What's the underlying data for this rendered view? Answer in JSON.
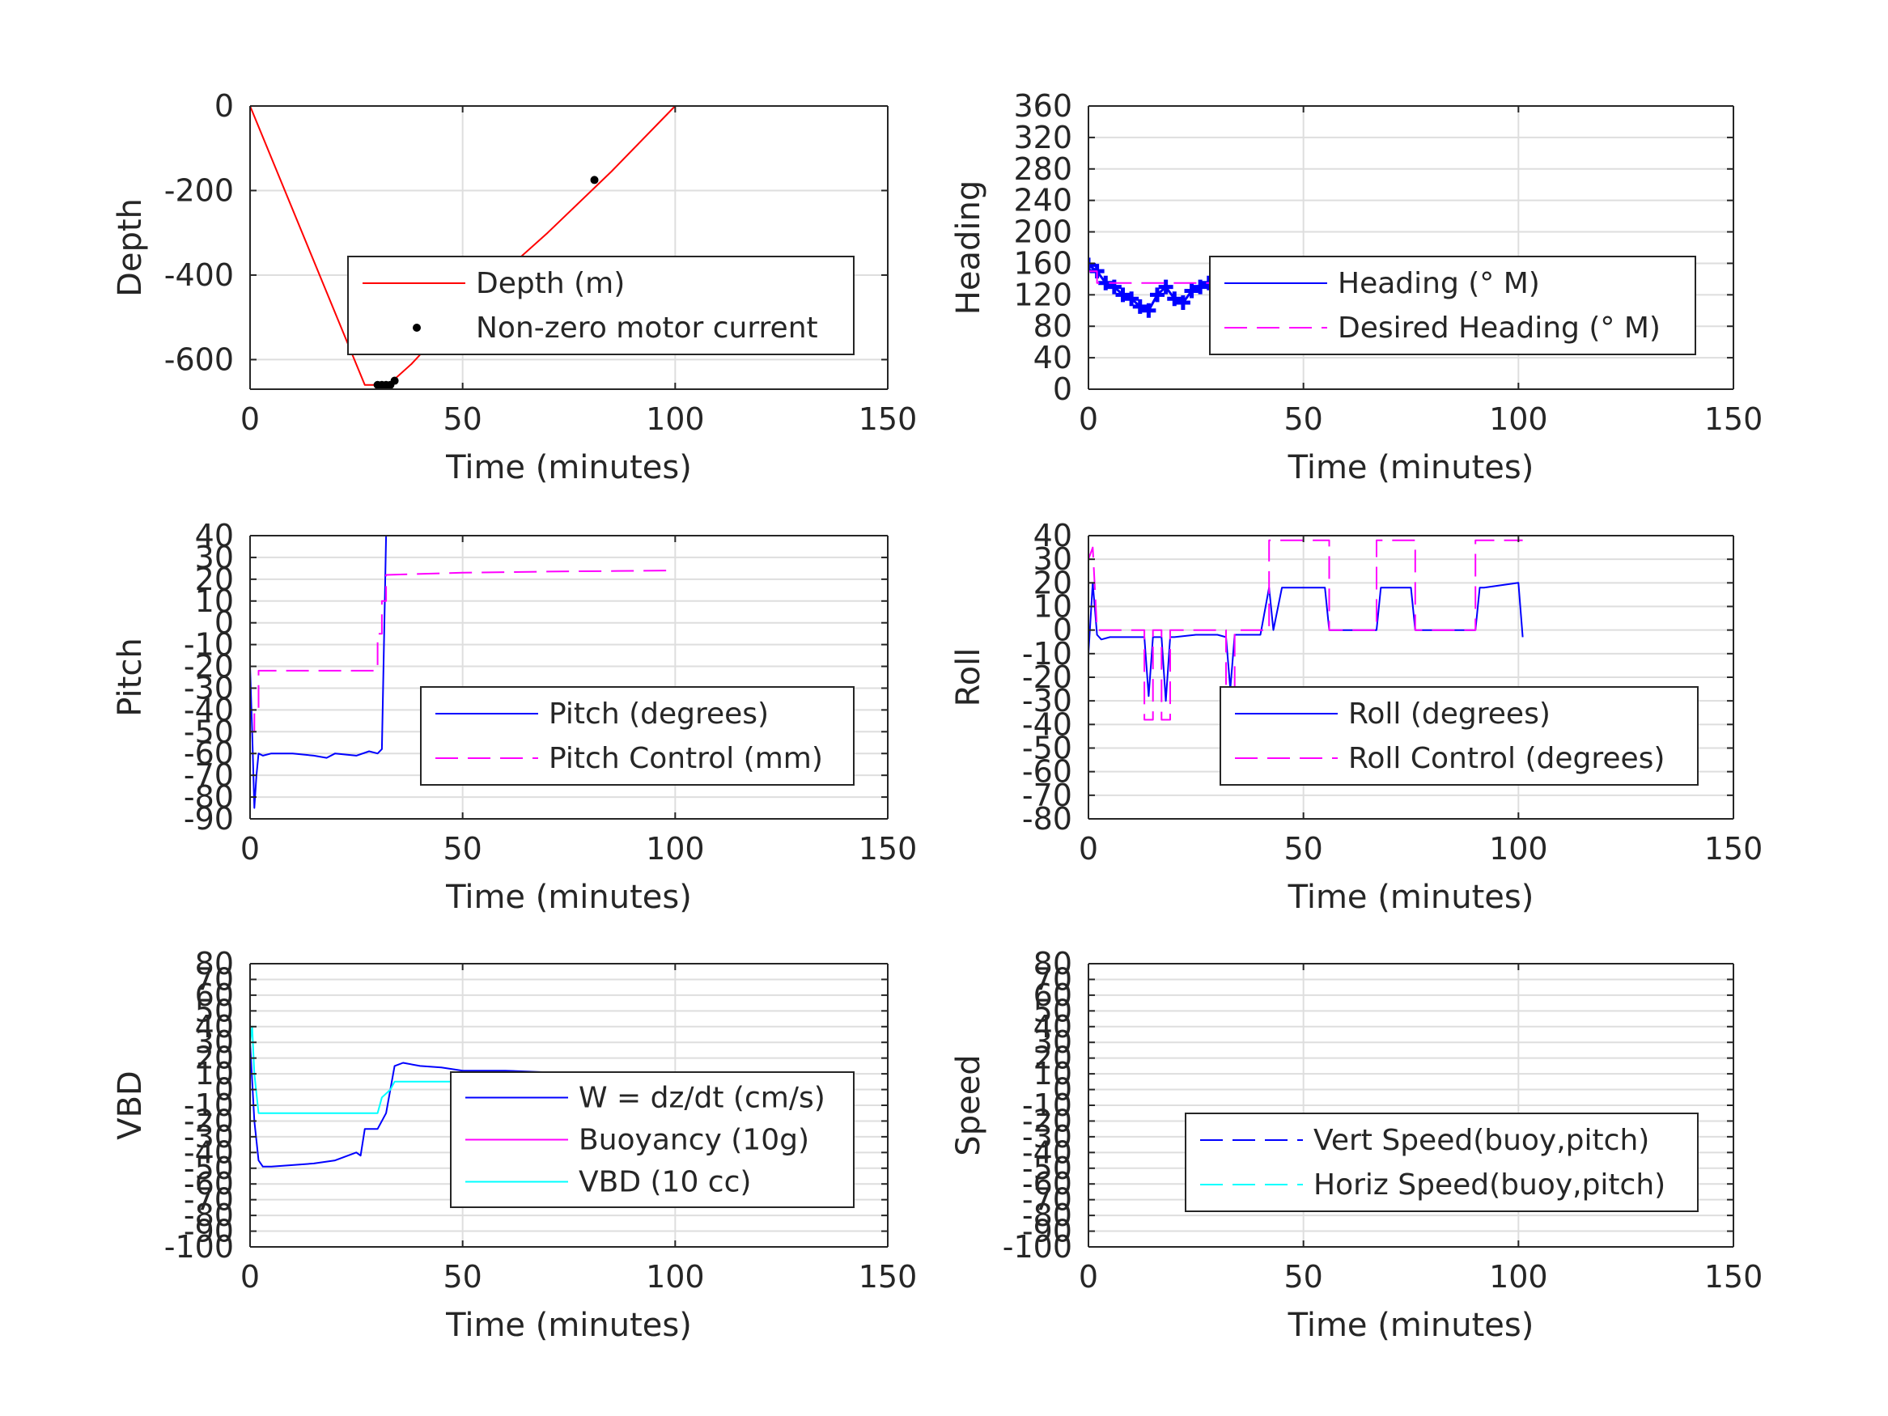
{
  "chart_data": [
    {
      "type": "line",
      "ylabel": "Depth",
      "xlabel": "Time (minutes)",
      "xlim": [
        0,
        150
      ],
      "ylim": [
        -670,
        0
      ],
      "xticks": [
        0,
        50,
        100,
        150
      ],
      "yticks": [
        -600,
        -400,
        -200,
        0
      ],
      "x_tick_labels": [
        "0",
        "50",
        "100",
        "150"
      ],
      "y_tick_labels": [
        "-600",
        "-400",
        "-200",
        "0"
      ],
      "grid": true,
      "legend_position": "center-right",
      "series": [
        {
          "name": "Depth (m)",
          "color": "#ff0000",
          "style": "solid",
          "x": [
            0,
            27,
            30,
            33,
            38,
            50,
            70,
            85,
            100
          ],
          "y": [
            0,
            -660,
            -660,
            -655,
            -610,
            -480,
            -300,
            -155,
            0
          ]
        },
        {
          "name": "Non-zero motor current",
          "color": "#000000",
          "style": "dots",
          "x": [
            30,
            31,
            32,
            33,
            34,
            81
          ],
          "y": [
            -660,
            -660,
            -660,
            -660,
            -650,
            -175
          ]
        }
      ]
    },
    {
      "type": "line",
      "ylabel": "Heading",
      "xlabel": "Time (minutes)",
      "xlim": [
        0,
        150
      ],
      "ylim": [
        0,
        360
      ],
      "xticks": [
        0,
        50,
        100,
        150
      ],
      "yticks": [
        0,
        40,
        80,
        120,
        160,
        200,
        240,
        280,
        320,
        360
      ],
      "x_tick_labels": [
        "0",
        "50",
        "100",
        "150"
      ],
      "y_tick_labels": [
        "0",
        "40",
        "80",
        "120",
        "160",
        "200",
        "240",
        "280",
        "320",
        "360"
      ],
      "grid": true,
      "legend_position": "center-right",
      "series": [
        {
          "name": "Heading (° M)",
          "color": "#0000ff",
          "style": "plus-markers",
          "x": [
            0,
            2,
            4,
            6,
            8,
            10,
            12,
            14,
            16,
            18,
            20,
            22,
            24,
            26,
            28,
            30,
            32,
            34,
            36,
            38,
            40,
            42,
            44,
            46,
            48,
            50,
            52,
            54,
            56,
            58,
            60,
            62,
            64,
            66,
            68,
            70,
            72,
            74,
            76,
            78,
            80,
            82,
            84,
            86,
            88,
            90,
            92,
            94,
            96,
            98,
            100,
            101
          ],
          "y": [
            158,
            150,
            135,
            130,
            120,
            115,
            105,
            100,
            120,
            130,
            115,
            110,
            125,
            130,
            135,
            140,
            150,
            145,
            130,
            120,
            110,
            95,
            70,
            65,
            90,
            125,
            120,
            130,
            125,
            120,
            135,
            125,
            100,
            95,
            110,
            130,
            125,
            130,
            135,
            125,
            120,
            130,
            125,
            115,
            120,
            130,
            125,
            115,
            110,
            120,
            100,
            105
          ]
        },
        {
          "name": "Desired Heading (° M)",
          "color": "#ff00ff",
          "style": "dashed",
          "x": [
            0,
            2,
            2,
            101
          ],
          "y": [
            150,
            150,
            135,
            135
          ]
        }
      ]
    },
    {
      "type": "line",
      "ylabel": "Pitch",
      "xlabel": "Time (minutes)",
      "xlim": [
        0,
        150
      ],
      "ylim": [
        -90,
        40
      ],
      "xticks": [
        0,
        50,
        100,
        150
      ],
      "yticks": [
        -90,
        -80,
        -70,
        -60,
        -50,
        -40,
        -30,
        -20,
        -10,
        0,
        10,
        20,
        30,
        40
      ],
      "x_tick_labels": [
        "0",
        "50",
        "100",
        "150"
      ],
      "y_tick_labels": [
        "-90",
        "-80",
        "-70",
        "-60",
        "-50",
        "-40",
        "-30",
        "-20",
        "-10",
        "0",
        "10",
        "20",
        "30",
        "40"
      ],
      "grid": true,
      "legend_position": "center-right",
      "series": [
        {
          "name": "Pitch (degrees)",
          "color": "#0000ff",
          "style": "solid",
          "x": [
            0,
            0.5,
            1,
            1.5,
            2,
            3,
            5,
            10,
            15,
            18,
            20,
            25,
            28,
            30,
            31,
            32
          ],
          "y": [
            -20,
            -50,
            -85,
            -70,
            -60,
            -61,
            -60,
            -60,
            -61,
            -62,
            -60,
            -61,
            -59,
            -60,
            -58,
            40
          ]
        },
        {
          "name": "Pitch Control (mm)",
          "color": "#ff00ff",
          "style": "dashed",
          "x": [
            0,
            1,
            1,
            2,
            2,
            30,
            30,
            31,
            31,
            32,
            32,
            50,
            70,
            98
          ],
          "y": [
            -50,
            -50,
            -40,
            -40,
            -22,
            -22,
            -5,
            -5,
            10,
            10,
            22,
            23,
            23.5,
            24
          ]
        }
      ]
    },
    {
      "type": "line",
      "ylabel": "Roll",
      "xlabel": "Time (minutes)",
      "xlim": [
        0,
        150
      ],
      "ylim": [
        -80,
        40
      ],
      "xticks": [
        0,
        50,
        100,
        150
      ],
      "yticks": [
        -80,
        -70,
        -60,
        -50,
        -40,
        -30,
        -20,
        -10,
        0,
        10,
        20,
        30,
        40
      ],
      "x_tick_labels": [
        "0",
        "50",
        "100",
        "150"
      ],
      "y_tick_labels": [
        "-80",
        "-70",
        "-60",
        "-50",
        "-40",
        "-30",
        "-20",
        "-10",
        "0",
        "10",
        "20",
        "30",
        "40"
      ],
      "grid": true,
      "legend_position": "center-right",
      "series": [
        {
          "name": "Roll (degrees)",
          "color": "#0000ff",
          "style": "solid",
          "x": [
            0,
            1,
            2,
            3,
            5,
            10,
            13,
            14,
            15,
            17,
            18,
            19,
            20,
            25,
            30,
            32,
            33,
            34,
            35,
            40,
            42,
            43,
            45,
            55,
            56,
            60,
            67,
            68,
            75,
            76,
            77,
            90,
            91,
            92,
            100,
            101
          ],
          "y": [
            -10,
            20,
            -2,
            -4,
            -3,
            -3,
            -3,
            -28,
            -3,
            -3,
            -30,
            -3,
            -3,
            -2,
            -2,
            -3,
            -25,
            -2,
            -2,
            -2,
            18,
            0,
            18,
            18,
            0,
            0,
            0,
            18,
            18,
            0,
            0,
            0,
            18,
            18,
            20,
            -3
          ]
        },
        {
          "name": "Roll Control (degrees)",
          "color": "#ff00ff",
          "style": "dashed",
          "x": [
            0,
            1,
            2,
            2,
            13,
            13,
            15,
            15,
            17,
            17,
            19,
            19,
            32,
            32,
            34,
            34,
            42,
            42,
            56,
            56,
            67,
            67,
            76,
            76,
            90,
            90,
            101
          ],
          "y": [
            30,
            35,
            0,
            0,
            0,
            -38,
            -38,
            0,
            0,
            -38,
            -38,
            0,
            0,
            -38,
            -38,
            0,
            0,
            38,
            38,
            0,
            0,
            38,
            38,
            0,
            0,
            38,
            38
          ]
        }
      ]
    },
    {
      "type": "line",
      "ylabel": "VBD",
      "xlabel": "Time (minutes)",
      "xlim": [
        0,
        150
      ],
      "ylim": [
        -100,
        80
      ],
      "xticks": [
        0,
        50,
        100,
        150
      ],
      "yticks": [
        -100,
        -90,
        -80,
        -70,
        -60,
        -50,
        -40,
        -30,
        -20,
        -10,
        0,
        10,
        20,
        30,
        40,
        50,
        60,
        70,
        80
      ],
      "x_tick_labels": [
        "0",
        "50",
        "100",
        "150"
      ],
      "y_tick_labels": [
        "-100",
        "-90",
        "-80",
        "-70",
        "-60",
        "-50",
        "-40",
        "-30",
        "-20",
        "-10",
        "0",
        "10",
        "20",
        "30",
        "40",
        "50",
        "60",
        "70",
        "80"
      ],
      "grid": true,
      "legend_position": "center-right",
      "series": [
        {
          "name": "W = dz/dt (cm/s)",
          "color": "#0000ff",
          "style": "solid",
          "x": [
            0,
            1,
            2,
            3,
            5,
            10,
            15,
            20,
            25,
            26,
            27,
            28,
            30,
            32,
            34,
            36,
            40,
            45,
            50,
            60,
            70,
            80,
            90,
            100,
            101
          ],
          "y": [
            30,
            -20,
            -45,
            -49,
            -49,
            -48,
            -47,
            -45,
            -40,
            -42,
            -25,
            -25,
            -25,
            -15,
            15,
            17,
            15,
            14,
            12,
            12,
            11,
            10,
            10,
            10,
            0
          ]
        },
        {
          "name": "Buoyancy (10g)",
          "color": "#ff00ff",
          "style": "solid",
          "x": [],
          "y": []
        },
        {
          "name": "VBD (10 cc)",
          "color": "#00ffff",
          "style": "solid",
          "x": [
            0,
            0.5,
            1,
            2,
            30,
            31,
            33,
            34,
            100
          ],
          "y": [
            30,
            40,
            10,
            -15,
            -15,
            -5,
            0,
            5,
            5
          ]
        }
      ]
    },
    {
      "type": "line",
      "ylabel": "Speed",
      "xlabel": "Time (minutes)",
      "xlim": [
        0,
        150
      ],
      "ylim": [
        -100,
        80
      ],
      "xticks": [
        0,
        50,
        100,
        150
      ],
      "yticks": [
        -100,
        -90,
        -80,
        -70,
        -60,
        -50,
        -40,
        -30,
        -20,
        -10,
        0,
        10,
        20,
        30,
        40,
        50,
        60,
        70,
        80
      ],
      "x_tick_labels": [
        "0",
        "50",
        "100",
        "150"
      ],
      "y_tick_labels": [
        "-100",
        "-90",
        "-80",
        "-70",
        "-60",
        "-50",
        "-40",
        "-30",
        "-20",
        "-10",
        "0",
        "10",
        "20",
        "30",
        "40",
        "50",
        "60",
        "70",
        "80"
      ],
      "grid": true,
      "legend_position": "lower-right",
      "series": [
        {
          "name": "Vert Speed(buoy,pitch)",
          "color": "#0000ff",
          "style": "dashed",
          "x": [],
          "y": []
        },
        {
          "name": "Horiz Speed(buoy,pitch)",
          "color": "#00ffff",
          "style": "dashed",
          "x": [],
          "y": []
        }
      ]
    }
  ]
}
